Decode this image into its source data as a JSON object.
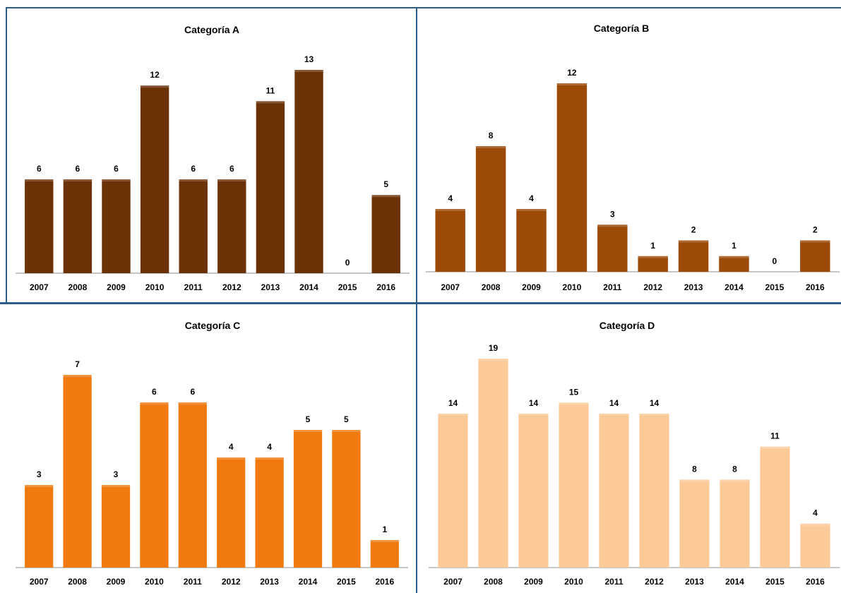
{
  "chart_data": [
    {
      "type": "bar",
      "title": "Categoría A",
      "categories": [
        "2007",
        "2008",
        "2009",
        "2010",
        "2011",
        "2012",
        "2013",
        "2014",
        "2015",
        "2016"
      ],
      "values": [
        6,
        6,
        6,
        12,
        6,
        6,
        11,
        13,
        0,
        5
      ],
      "color": "#6b3208",
      "ylim": [
        0,
        13
      ],
      "grid": false,
      "legend": "none"
    },
    {
      "type": "bar",
      "title": "Categoría B",
      "categories": [
        "2007",
        "2008",
        "2009",
        "2010",
        "2011",
        "2012",
        "2013",
        "2014",
        "2015",
        "2016"
      ],
      "values": [
        4,
        8,
        4,
        12,
        3,
        1,
        2,
        1,
        0,
        2
      ],
      "color": "#9c4a08",
      "ylim": [
        0,
        12
      ],
      "grid": false,
      "legend": "none"
    },
    {
      "type": "bar",
      "title": "Categoría C",
      "categories": [
        "2007",
        "2008",
        "2009",
        "2010",
        "2011",
        "2012",
        "2013",
        "2014",
        "2015",
        "2016"
      ],
      "values": [
        3,
        7,
        3,
        6,
        6,
        4,
        4,
        5,
        5,
        1
      ],
      "color": "#f07a10",
      "ylim": [
        0,
        7
      ],
      "grid": false,
      "legend": "none"
    },
    {
      "type": "bar",
      "title": "Categoría D",
      "categories": [
        "2007",
        "2008",
        "2009",
        "2010",
        "2011",
        "2012",
        "2013",
        "2014",
        "2015",
        "2016"
      ],
      "values": [
        14,
        19,
        14,
        15,
        14,
        14,
        8,
        8,
        11,
        4
      ],
      "color": "#fcca98",
      "ylim": [
        0,
        19
      ],
      "grid": false,
      "legend": "none"
    }
  ]
}
